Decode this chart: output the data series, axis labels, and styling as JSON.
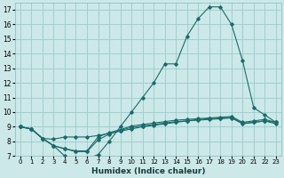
{
  "xlabel": "Humidex (Indice chaleur)",
  "bg_color": "#cce8e8",
  "grid_color": "#99cccc",
  "line_color": "#1a6b6b",
  "xlim": [
    -0.5,
    23.5
  ],
  "ylim": [
    7,
    17.5
  ],
  "xticks": [
    0,
    1,
    2,
    3,
    4,
    5,
    6,
    7,
    8,
    9,
    10,
    11,
    12,
    13,
    14,
    15,
    16,
    17,
    18,
    19,
    20,
    21,
    22,
    23
  ],
  "yticks": [
    7,
    8,
    9,
    10,
    11,
    12,
    13,
    14,
    15,
    16,
    17
  ],
  "lines": [
    {
      "x": [
        0,
        1,
        2,
        3,
        4,
        5,
        6,
        7,
        8,
        9,
        10,
        11,
        12,
        13,
        14,
        15,
        16,
        17,
        18,
        19,
        20,
        21,
        22,
        23
      ],
      "y": [
        9.0,
        8.85,
        8.2,
        8.15,
        8.3,
        8.3,
        8.3,
        8.4,
        8.55,
        8.7,
        8.85,
        9.0,
        9.1,
        9.2,
        9.3,
        9.4,
        9.5,
        9.55,
        9.6,
        9.65,
        9.25,
        9.3,
        9.4,
        9.3
      ]
    },
    {
      "x": [
        0,
        1,
        2,
        3,
        4,
        5,
        6,
        7,
        8,
        9,
        10,
        11,
        12,
        13,
        14,
        15,
        16,
        17,
        18,
        19,
        20,
        21,
        22,
        23
      ],
      "y": [
        9.0,
        8.85,
        8.2,
        7.7,
        7.0,
        6.8,
        6.8,
        7.1,
        8.0,
        9.0,
        10.0,
        11.0,
        12.0,
        13.3,
        13.3,
        15.2,
        16.4,
        17.2,
        17.2,
        16.0,
        13.5,
        10.3,
        9.8,
        9.3
      ]
    },
    {
      "x": [
        0,
        1,
        2,
        3,
        4,
        5,
        6,
        7,
        8,
        9,
        10,
        11,
        12,
        13,
        14,
        15,
        16,
        17,
        18,
        19,
        20,
        21,
        22,
        23
      ],
      "y": [
        9.0,
        8.85,
        8.2,
        7.7,
        7.5,
        7.35,
        7.35,
        8.3,
        8.6,
        8.8,
        9.05,
        9.15,
        9.25,
        9.35,
        9.45,
        9.5,
        9.55,
        9.6,
        9.65,
        9.7,
        9.3,
        9.4,
        9.5,
        9.3
      ]
    },
    {
      "x": [
        0,
        1,
        2,
        3,
        4,
        5,
        6,
        7,
        8,
        9,
        10,
        11,
        12,
        13,
        14,
        15,
        16,
        17,
        18,
        19,
        20,
        21,
        22,
        23
      ],
      "y": [
        9.0,
        8.85,
        8.2,
        7.7,
        7.5,
        7.3,
        7.3,
        8.1,
        8.5,
        8.75,
        8.95,
        9.05,
        9.15,
        9.25,
        9.35,
        9.4,
        9.45,
        9.5,
        9.55,
        9.6,
        9.2,
        9.3,
        9.4,
        9.2
      ]
    }
  ]
}
